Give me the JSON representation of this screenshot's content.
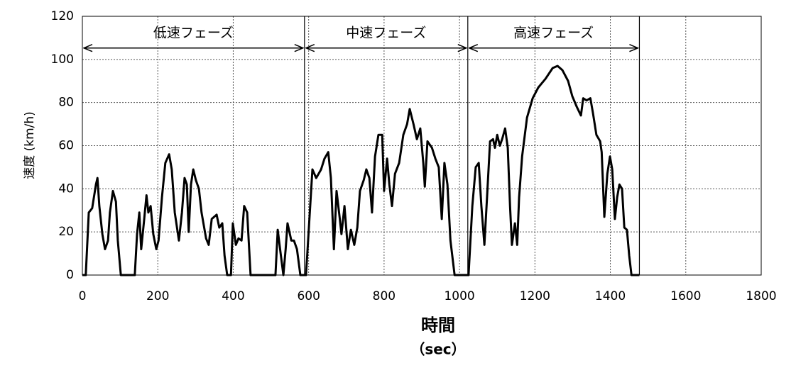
{
  "chart_data": {
    "type": "line",
    "y_label": "速度 (km/h)",
    "x_label": "時間",
    "x_unit": "（sec）",
    "color": "#000000",
    "grid": true,
    "xlim": [
      0,
      1800
    ],
    "xticks": [
      0,
      200,
      400,
      600,
      800,
      1000,
      1200,
      1400,
      1600,
      1800
    ],
    "ylim": [
      0,
      120
    ],
    "yticks": [
      0,
      20,
      40,
      60,
      80,
      100,
      120
    ],
    "phases": [
      {
        "label": "低速フェーズ",
        "start": 0,
        "end": 589
      },
      {
        "label": "中速フェーズ",
        "start": 589,
        "end": 1022
      },
      {
        "label": "高速フェーズ",
        "start": 1022,
        "end": 1477
      }
    ],
    "x": [
      0,
      9,
      17,
      26,
      36,
      40,
      45,
      53,
      60,
      68,
      73,
      81,
      89,
      94,
      102,
      139,
      145,
      151,
      156,
      164,
      170,
      175,
      181,
      188,
      196,
      202,
      211,
      220,
      230,
      237,
      245,
      256,
      264,
      271,
      277,
      282,
      288,
      294,
      301,
      309,
      316,
      328,
      335,
      343,
      356,
      363,
      371,
      377,
      384,
      394,
      399,
      407,
      414,
      422,
      429,
      437,
      446,
      512,
      518,
      525,
      533,
      539,
      544,
      554,
      561,
      569,
      578,
      584,
      593,
      610,
      620,
      633,
      642,
      652,
      659,
      667,
      674,
      682,
      687,
      695,
      704,
      712,
      721,
      729,
      736,
      746,
      753,
      761,
      768,
      776,
      785,
      795,
      800,
      808,
      814,
      821,
      829,
      840,
      851,
      861,
      868,
      878,
      887,
      896,
      904,
      908,
      915,
      927,
      936,
      945,
      953,
      960,
      968,
      976,
      987,
      1015,
      1024,
      1034,
      1043,
      1051,
      1058,
      1066,
      1073,
      1081,
      1089,
      1094,
      1100,
      1107,
      1113,
      1121,
      1128,
      1134,
      1139,
      1147,
      1153,
      1158,
      1166,
      1179,
      1194,
      1209,
      1228,
      1247,
      1260,
      1273,
      1288,
      1299,
      1311,
      1322,
      1328,
      1337,
      1347,
      1354,
      1363,
      1373,
      1377,
      1384,
      1392,
      1399,
      1405,
      1412,
      1418,
      1424,
      1431,
      1437,
      1444,
      1450,
      1456,
      1477
    ],
    "values": [
      0,
      0,
      29,
      31,
      42,
      45,
      32,
      19,
      12,
      16,
      29,
      39,
      34,
      16,
      0,
      0,
      19,
      29,
      12,
      26,
      37,
      29,
      32,
      19,
      12,
      16,
      36,
      52,
      56,
      49,
      29,
      16,
      29,
      45,
      42,
      20,
      42,
      49,
      44,
      40,
      29,
      17,
      14,
      26,
      28,
      22,
      24,
      9,
      0,
      0,
      24,
      14,
      17,
      16,
      32,
      29,
      0,
      0,
      21,
      11,
      0,
      12,
      24,
      16,
      16,
      12,
      0,
      0,
      0,
      49,
      45,
      49,
      54,
      57,
      45,
      12,
      39,
      27,
      19,
      32,
      12,
      21,
      14,
      22,
      39,
      44,
      49,
      45,
      29,
      55,
      65,
      65,
      39,
      54,
      42,
      32,
      47,
      52,
      65,
      70,
      77,
      70,
      63,
      68,
      52,
      41,
      62,
      59,
      54,
      50,
      26,
      52,
      42,
      16,
      0,
      0,
      0,
      32,
      50,
      52,
      32,
      14,
      36,
      62,
      63,
      59,
      65,
      60,
      63,
      68,
      59,
      32,
      14,
      24,
      14,
      36,
      55,
      73,
      82,
      87,
      91,
      96,
      97,
      95,
      90,
      83,
      78,
      74,
      82,
      81,
      82,
      75,
      65,
      62,
      57,
      27,
      47,
      55,
      49,
      26,
      36,
      42,
      40,
      22,
      21,
      9,
      0,
      0
    ]
  }
}
